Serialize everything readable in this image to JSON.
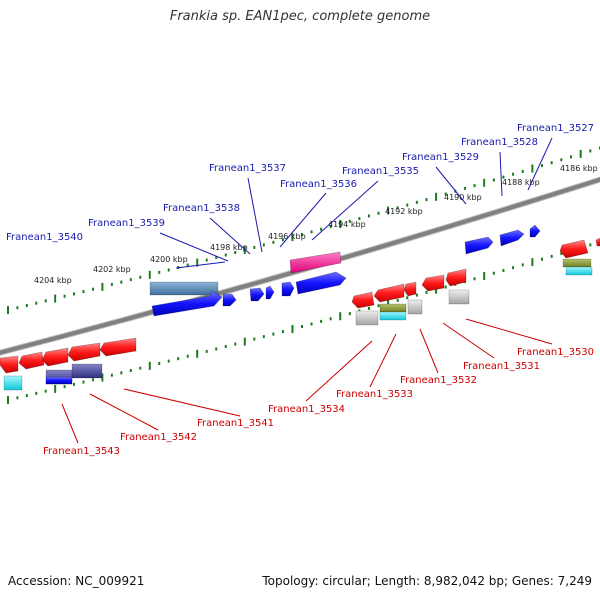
{
  "title": "Frankia sp. EAN1pec, complete genome",
  "footer": {
    "accession": "Accession: NC_009921",
    "summary": "Topology: circular; Length: 8,982,042 bp; Genes: 7,249"
  },
  "colors": {
    "forward_label": "#1a1ab0",
    "reverse_label": "#cc0000",
    "backbone": "#808080",
    "tick": "#1f7a1f"
  },
  "scale_labels": [
    "4204 kbp",
    "4202 kbp",
    "4200 kbp",
    "4198 kbp",
    "4196 kbp",
    "4194 kbp",
    "4192 kbp",
    "4190 kbp",
    "4188 kbp",
    "4186 kbp"
  ],
  "forward_genes": [
    "Franean1_3540",
    "Franean1_3539",
    "Franean1_3538",
    "Franean1_3537",
    "Franean1_3536",
    "Franean1_3535",
    "Franean1_3529",
    "Franean1_3528",
    "Franean1_3527"
  ],
  "reverse_genes": [
    "Franean1_3543",
    "Franean1_3542",
    "Franean1_3541",
    "Franean1_3534",
    "Franean1_3533",
    "Franean1_3532",
    "Franean1_3531",
    "Franean1_3530"
  ]
}
